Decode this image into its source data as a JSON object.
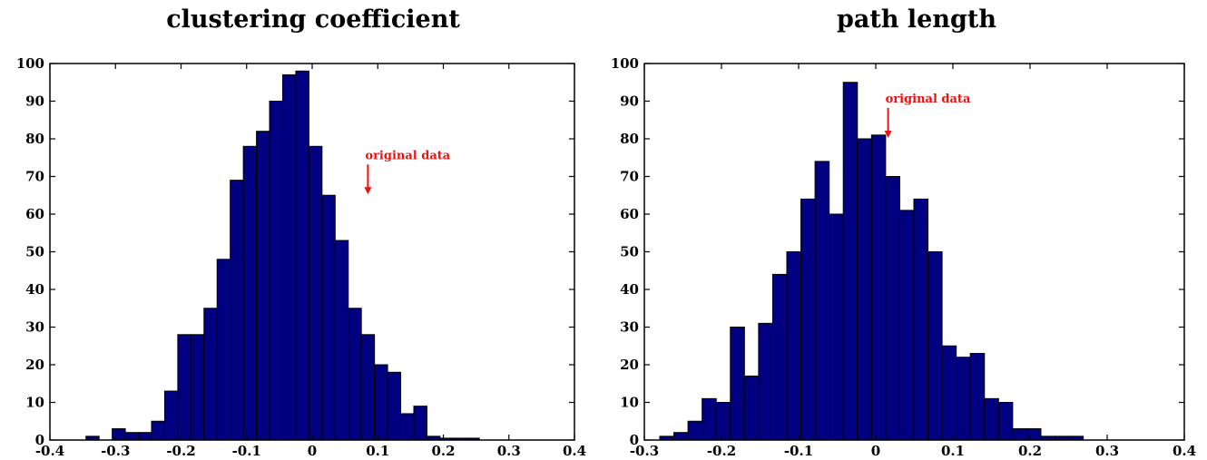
{
  "colors": {
    "bar_fill": "#000080",
    "bar_edge": "#000000",
    "annotation": "#ee1111",
    "axis": "#000000"
  },
  "chart_data": [
    {
      "type": "bar",
      "title": "clustering coefficient",
      "xlim": [
        -0.4,
        0.4
      ],
      "ylim": [
        0,
        100
      ],
      "xticks": [
        -0.4,
        -0.3,
        -0.2,
        -0.1,
        0,
        0.1,
        0.2,
        0.3,
        0.4
      ],
      "yticks": [
        0,
        10,
        20,
        30,
        40,
        50,
        60,
        70,
        80,
        90,
        100
      ],
      "xtick_labels": [
        "-0.4",
        "-0.3",
        "-0.2",
        "-0.1",
        "0",
        "0.1",
        "0.2",
        "0.3",
        "0.4"
      ],
      "ytick_labels": [
        "0",
        "10",
        "20",
        "30",
        "40",
        "50",
        "60",
        "70",
        "80",
        "90",
        "100"
      ],
      "bin_start": -0.345,
      "bin_width": 0.02,
      "values": [
        1,
        0,
        3,
        2,
        2,
        5,
        13,
        28,
        28,
        35,
        48,
        69,
        78,
        82,
        90,
        97,
        98,
        78,
        65,
        53,
        35,
        28,
        20,
        18,
        7,
        9,
        1,
        0.5,
        0.5,
        0.5
      ],
      "annotation": {
        "text": "original data",
        "x": 0.085,
        "y": 65
      }
    },
    {
      "type": "bar",
      "title": "path length",
      "xlim": [
        -0.3,
        0.4
      ],
      "ylim": [
        0,
        100
      ],
      "xticks": [
        -0.3,
        -0.2,
        -0.1,
        0,
        0.1,
        0.2,
        0.3,
        0.4
      ],
      "yticks": [
        0,
        10,
        20,
        30,
        40,
        50,
        60,
        70,
        80,
        90,
        100
      ],
      "xtick_labels": [
        "-0.3",
        "-0.2",
        "-0.1",
        "0",
        "0.1",
        "0.2",
        "0.3",
        "0.4"
      ],
      "ytick_labels": [
        "0",
        "10",
        "20",
        "30",
        "40",
        "50",
        "60",
        "70",
        "80",
        "90",
        "100"
      ],
      "bin_start": -0.28,
      "bin_width": 0.0183,
      "values": [
        1,
        2,
        5,
        11,
        10,
        30,
        17,
        31,
        44,
        50,
        64,
        74,
        60,
        95,
        80,
        81,
        70,
        61,
        64,
        50,
        25,
        22,
        23,
        11,
        10,
        3,
        3,
        1,
        1,
        1
      ],
      "annotation": {
        "text": "original data",
        "x": 0.016,
        "y": 80
      }
    }
  ]
}
